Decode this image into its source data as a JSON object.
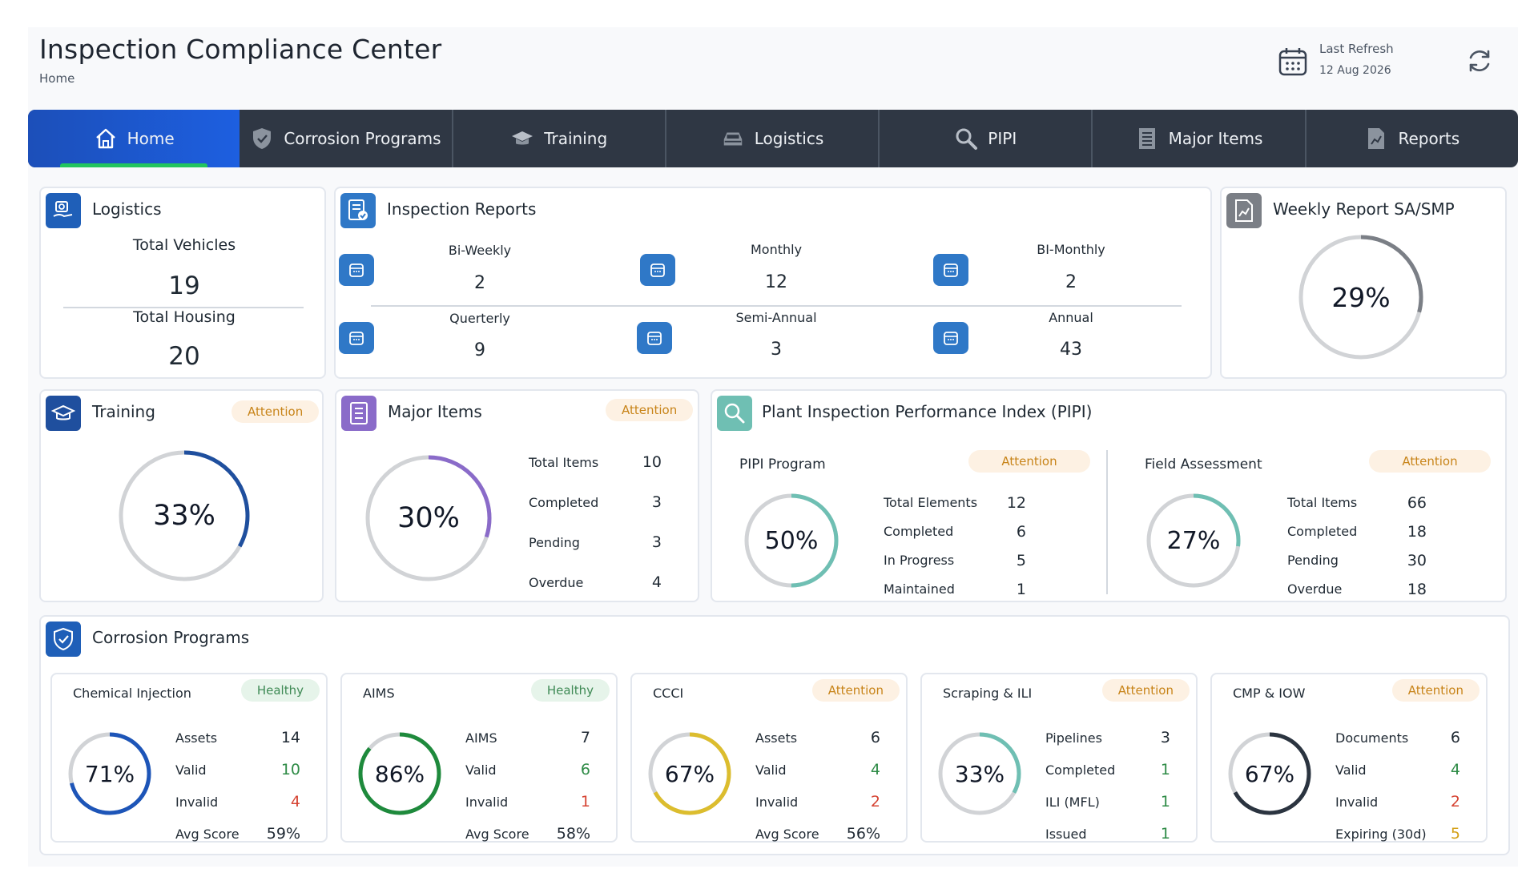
{
  "header": {
    "title": "Inspection Compliance Center",
    "breadcrumb": "Home",
    "refresh_label": "Last Refresh",
    "refresh_date": "12 Aug 2026"
  },
  "nav": {
    "tabs": [
      {
        "label": "Home",
        "icon": "home-icon",
        "active": true
      },
      {
        "label": "Corrosion Programs",
        "icon": "shield-icon"
      },
      {
        "label": "Training",
        "icon": "graduation-cap-icon"
      },
      {
        "label": "Logistics",
        "icon": "car-icon"
      },
      {
        "label": "PIPI",
        "icon": "magnifier-icon"
      },
      {
        "label": "Major Items",
        "icon": "list-icon"
      },
      {
        "label": "Reports",
        "icon": "report-icon"
      }
    ]
  },
  "logistics": {
    "title": "Logistics",
    "vehicles_label": "Total Vehicles",
    "vehicles": "19",
    "housing_label": "Total Housing",
    "housing": "20"
  },
  "inspection_reports": {
    "title": "Inspection Reports",
    "items": [
      {
        "label": "Bi-Weekly",
        "value": "2"
      },
      {
        "label": "Monthly",
        "value": "12"
      },
      {
        "label": "BI-Monthly",
        "value": "2"
      },
      {
        "label": "Querterly",
        "value": "9"
      },
      {
        "label": "Semi-Annual",
        "value": "3"
      },
      {
        "label": "Annual",
        "value": "43"
      }
    ]
  },
  "weekly": {
    "title": "Weekly Report SA/SMP",
    "percent": "29%",
    "progress": 0.29,
    "color": "#7b7f86"
  },
  "training": {
    "title": "Training",
    "badge": "Attention",
    "percent": "33%",
    "progress": 0.33,
    "color": "#1f4f9e"
  },
  "major_items": {
    "title": "Major Items",
    "badge": "Attention",
    "percent": "30%",
    "progress": 0.3,
    "color": "#8a6bc9",
    "rows": [
      {
        "label": "Total Items",
        "value": "10"
      },
      {
        "label": "Completed",
        "value": "3"
      },
      {
        "label": "Pending",
        "value": "3"
      },
      {
        "label": "Overdue",
        "value": "4"
      }
    ]
  },
  "pipi": {
    "title": "Plant Inspection Performance Index (PIPI)",
    "program": {
      "title": "PIPI Program",
      "badge": "Attention",
      "percent": "50%",
      "progress": 0.5,
      "color": "#6fbfb3",
      "rows": [
        {
          "label": "Total Elements",
          "value": "12"
        },
        {
          "label": "Completed",
          "value": "6"
        },
        {
          "label": "In Progress",
          "value": "5"
        },
        {
          "label": "Maintained",
          "value": "1"
        }
      ]
    },
    "field": {
      "title": "Field Assessment",
      "badge": "Attention",
      "percent": "27%",
      "progress": 0.27,
      "color": "#6fbfb3",
      "rows": [
        {
          "label": "Total Items",
          "value": "66"
        },
        {
          "label": "Completed",
          "value": "18"
        },
        {
          "label": "Pending",
          "value": "30"
        },
        {
          "label": "Overdue",
          "value": "18"
        }
      ]
    }
  },
  "corrosion": {
    "title": "Corrosion Programs",
    "programs": [
      {
        "title": "Chemical Injection",
        "badge": "Healthy",
        "percent": "71%",
        "progress": 0.71,
        "color": "#1d55b8",
        "rows": [
          {
            "label": "Assets",
            "value": "14",
            "tone": ""
          },
          {
            "label": "Valid",
            "value": "10",
            "tone": "g"
          },
          {
            "label": "Invalid",
            "value": "4",
            "tone": "r"
          },
          {
            "label": "Avg Score",
            "value": "59%",
            "tone": ""
          }
        ]
      },
      {
        "title": "AIMS",
        "badge": "Healthy",
        "percent": "86%",
        "progress": 0.86,
        "color": "#1e8a3c",
        "rows": [
          {
            "label": "AIMS",
            "value": "7",
            "tone": ""
          },
          {
            "label": "Valid",
            "value": "6",
            "tone": "g"
          },
          {
            "label": "Invalid",
            "value": "1",
            "tone": "r"
          },
          {
            "label": "Avg Score",
            "value": "58%",
            "tone": ""
          }
        ]
      },
      {
        "title": "CCCI",
        "badge": "Attention",
        "percent": "67%",
        "progress": 0.67,
        "color": "#dcbd2e",
        "rows": [
          {
            "label": "Assets",
            "value": "6",
            "tone": ""
          },
          {
            "label": "Valid",
            "value": "4",
            "tone": "g"
          },
          {
            "label": "Invalid",
            "value": "2",
            "tone": "r"
          },
          {
            "label": "Avg Score",
            "value": "56%",
            "tone": ""
          }
        ]
      },
      {
        "title": "Scraping & ILI",
        "badge": "Attention",
        "percent": "33%",
        "progress": 0.33,
        "color": "#6fbfb3",
        "rows": [
          {
            "label": "Pipelines",
            "value": "3",
            "tone": ""
          },
          {
            "label": "Completed",
            "value": "1",
            "tone": "g"
          },
          {
            "label": "ILI (MFL)",
            "value": "1",
            "tone": "g"
          },
          {
            "label": "Issued",
            "value": "1",
            "tone": "g"
          }
        ]
      },
      {
        "title": "CMP & IOW",
        "badge": "Attention",
        "percent": "67%",
        "progress": 0.67,
        "color": "#2b3440",
        "rows": [
          {
            "label": "Documents",
            "value": "6",
            "tone": ""
          },
          {
            "label": "Valid",
            "value": "4",
            "tone": "g"
          },
          {
            "label": "Invalid",
            "value": "2",
            "tone": "r"
          },
          {
            "label": "Expiring (30d)",
            "value": "5",
            "tone": "y"
          }
        ]
      }
    ]
  }
}
